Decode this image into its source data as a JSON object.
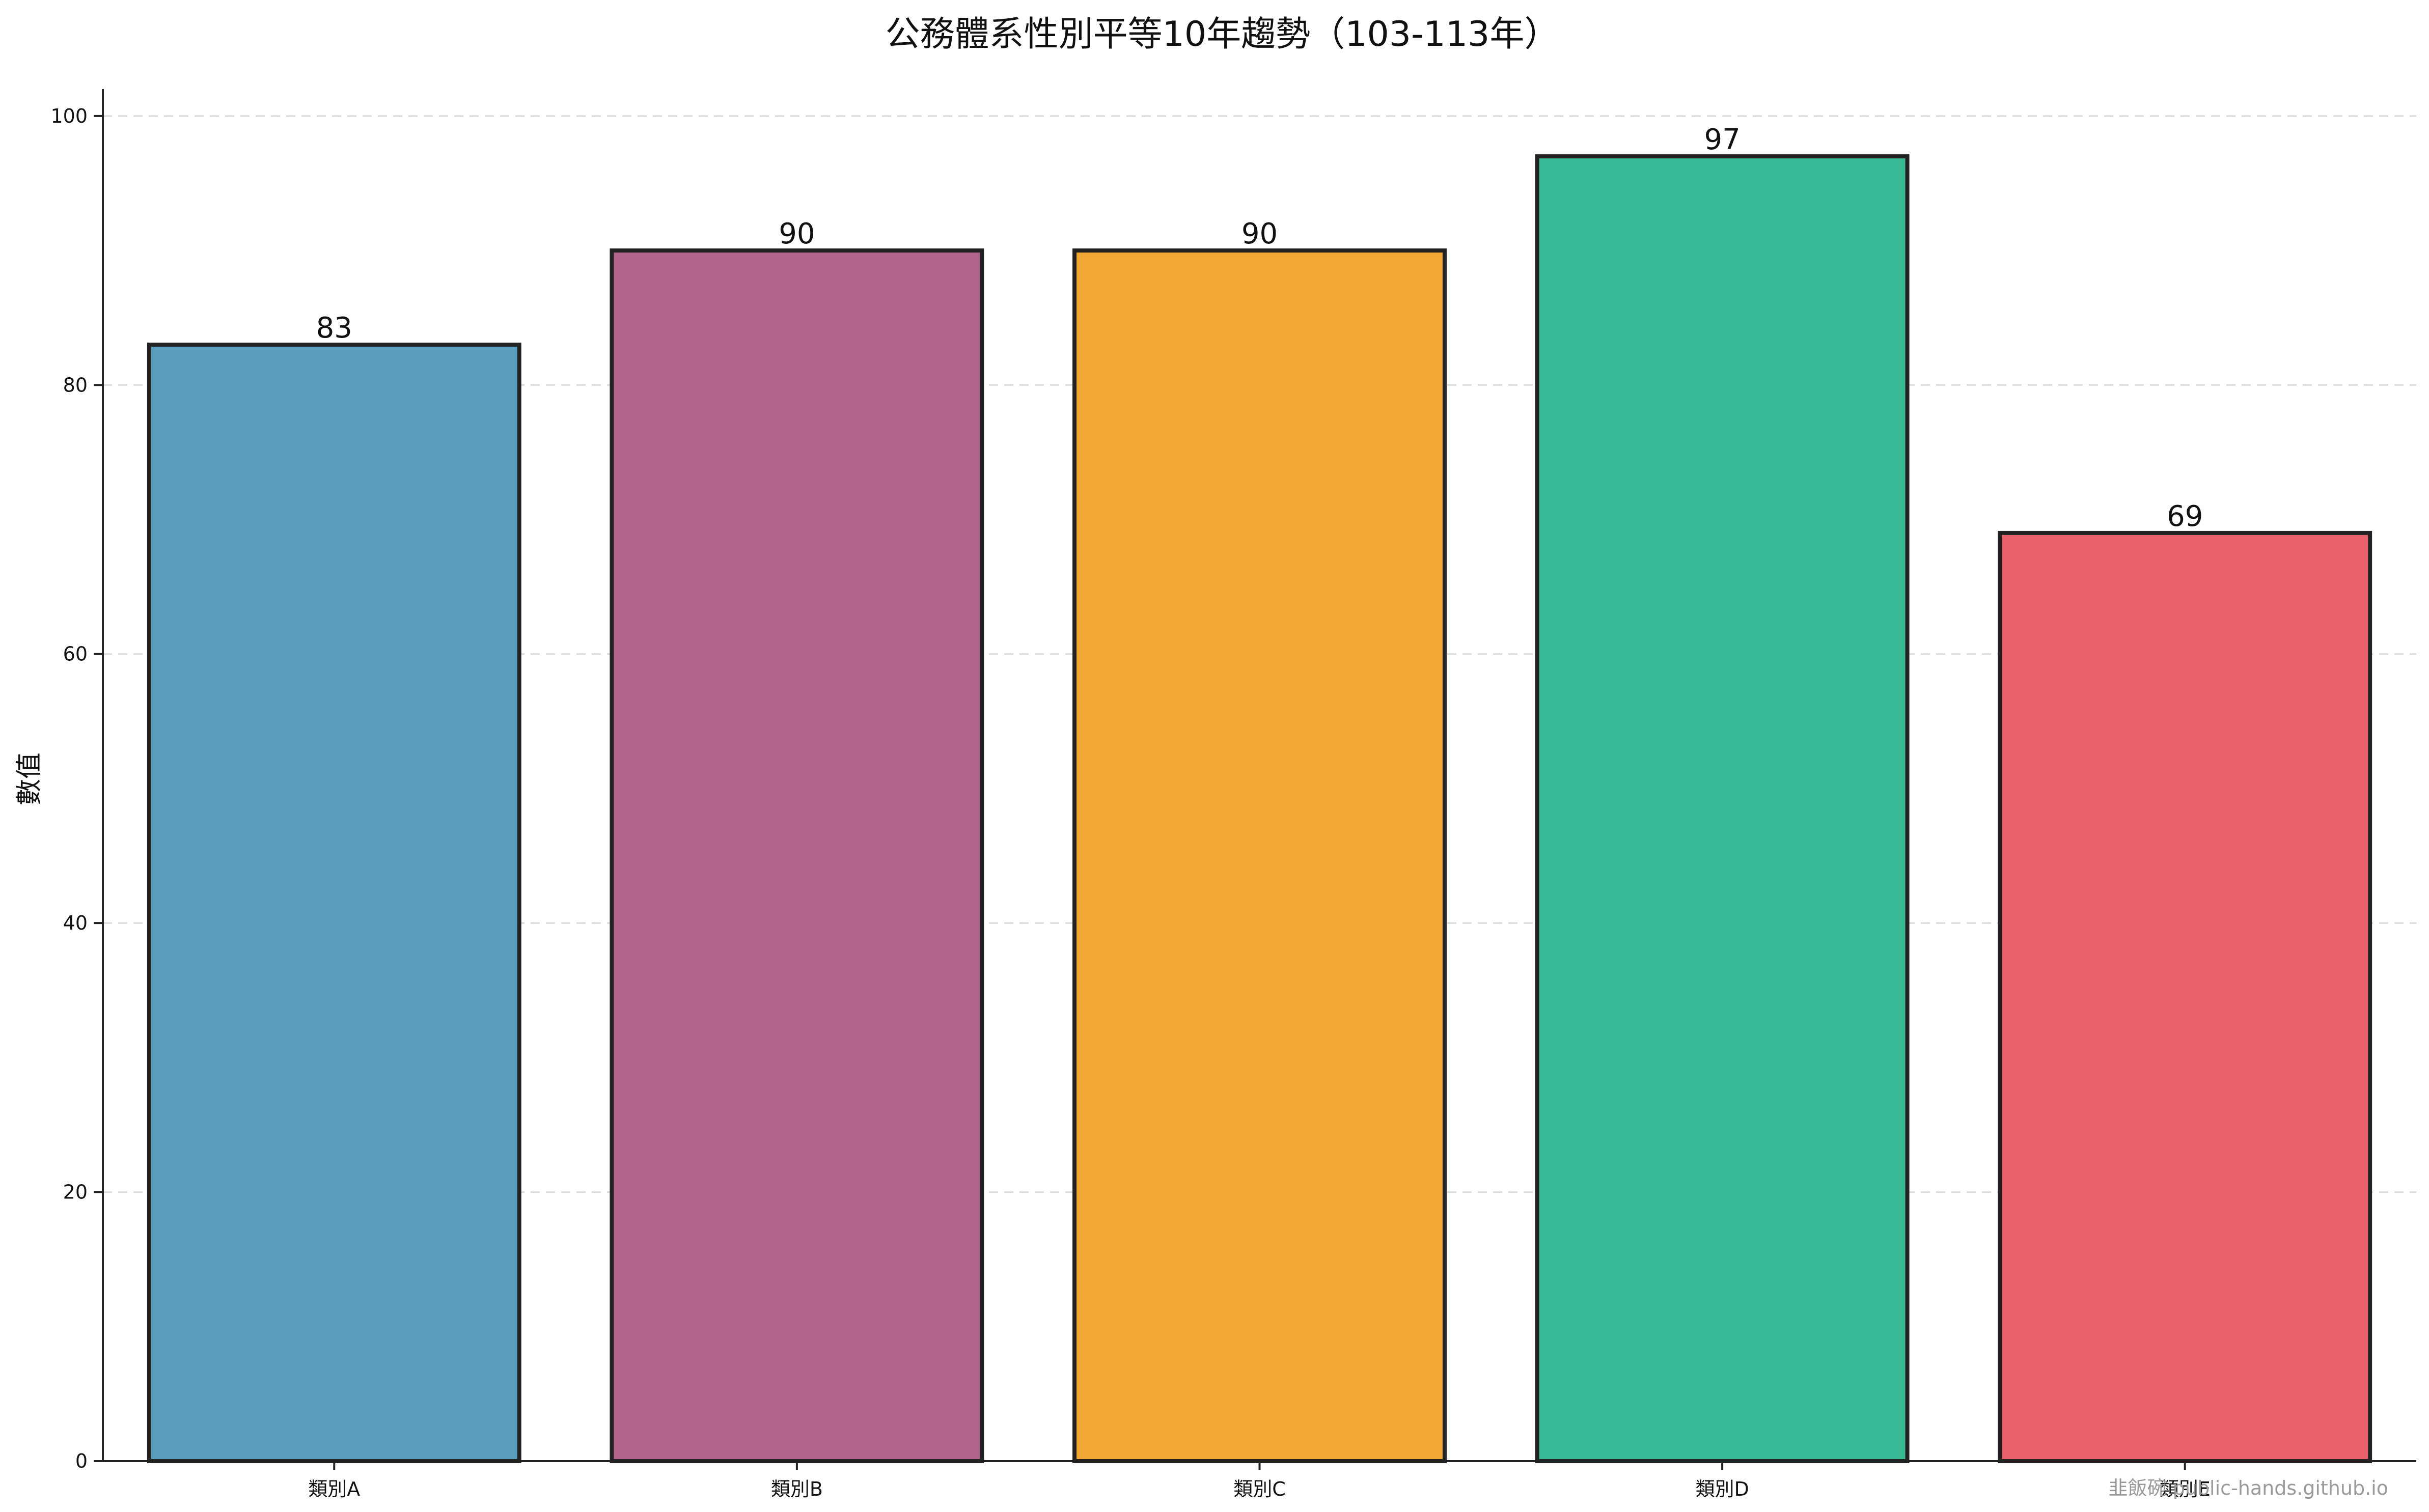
{
  "chart_data": {
    "type": "bar",
    "title": "公務體系性別平等10年趨勢（103-113年）",
    "xlabel": "",
    "ylabel": "數值",
    "categories": [
      "類別A",
      "類別B",
      "類別C",
      "類別D",
      "類別E"
    ],
    "values": [
      83,
      90,
      90,
      97,
      69
    ],
    "colors": [
      "#5a9dbd",
      "#b3648c",
      "#f2a634",
      "#38b995",
      "#e8606a"
    ],
    "ylim": [
      0,
      102
    ],
    "yticks": [
      0,
      20,
      40,
      60,
      80,
      100
    ],
    "grid": "y-dashed",
    "legend": "none"
  },
  "watermark": "韭飯碗 public-hands.github.io"
}
